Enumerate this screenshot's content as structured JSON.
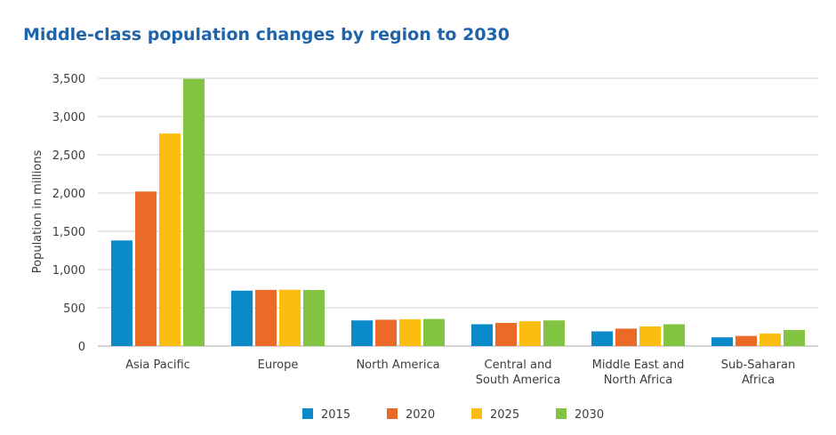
{
  "chart_data": {
    "type": "bar",
    "title": "Middle-class population changes by region to 2030",
    "xlabel": "",
    "ylabel": "Population in millions",
    "ylim": [
      0,
      3500
    ],
    "yticks": [
      0,
      500,
      1000,
      1500,
      2000,
      2500,
      3000,
      3500
    ],
    "ytick_labels": [
      "0",
      "500",
      "1,000",
      "1,500",
      "2,000",
      "2,500",
      "3,000",
      "3,500"
    ],
    "grid": true,
    "legend_position": "bottom-center",
    "categories": [
      "Asia Pacific",
      "Europe",
      "North America",
      "Central and South America",
      "Middle East and North Africa",
      "Sub-Saharan Africa"
    ],
    "category_label_lines": [
      [
        "Asia Pacific"
      ],
      [
        "Europe"
      ],
      [
        "North America"
      ],
      [
        "Central and",
        "South America"
      ],
      [
        "Middle East and",
        "North Africa"
      ],
      [
        "Sub-Saharan",
        "Africa"
      ]
    ],
    "series": [
      {
        "name": "2015",
        "color": "#0a8ac8",
        "values": [
          1380,
          724,
          335,
          285,
          192,
          114
        ]
      },
      {
        "name": "2020",
        "color": "#ec6a28",
        "values": [
          2020,
          734,
          344,
          303,
          228,
          132
        ]
      },
      {
        "name": "2025",
        "color": "#fbbd0f",
        "values": [
          2778,
          736,
          350,
          324,
          256,
          164
        ]
      },
      {
        "name": "2030",
        "color": "#82c341",
        "values": [
          3492,
          733,
          354,
          335,
          285,
          210
        ]
      }
    ]
  },
  "colors": {
    "title": "#1f63a8",
    "axis_text": "#3d3d3d",
    "gridline": "#d0d0d0"
  }
}
